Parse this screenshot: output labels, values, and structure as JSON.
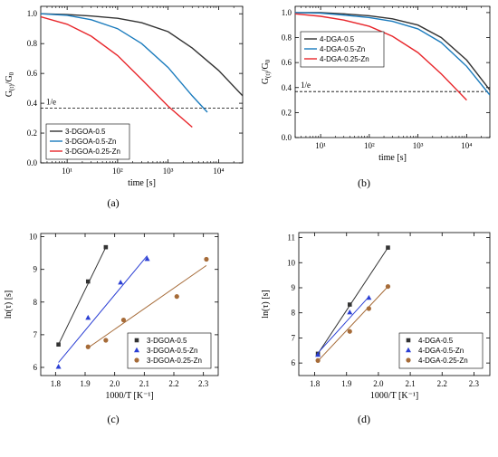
{
  "chart_data": [
    {
      "panel": "(a)",
      "type": "line",
      "xscale": "log",
      "xlim": [
        3,
        30000
      ],
      "ylim": [
        0,
        1.05
      ],
      "x_ticks": [
        10,
        100,
        1000,
        10000
      ],
      "x_tick_labels": [
        "10¹",
        "10²",
        "10³",
        "10⁴"
      ],
      "y_ticks": [
        0,
        0.2,
        0.4,
        0.6,
        0.8,
        1.0
      ],
      "y_tick_labels": [
        "0.0",
        "0.2",
        "0.4",
        "0.6",
        "0.8",
        "1.0"
      ],
      "xlabel": "time [s]",
      "ylabel": "G(t)/G0",
      "ylabel_main": "G",
      "ylabel_sub1": "(t)",
      "ylabel_mid": "/G",
      "ylabel_sub2": "0",
      "reference_line": {
        "y": 0.368,
        "label": "1/e",
        "style": "dashed"
      },
      "legend_position": "bottom-left",
      "series": [
        {
          "name": "3-DGOA-0.5",
          "color": "#333333",
          "x": [
            3,
            10,
            30,
            100,
            300,
            1000,
            3000,
            10000,
            30000
          ],
          "y": [
            1.0,
            0.995,
            0.985,
            0.97,
            0.94,
            0.88,
            0.77,
            0.62,
            0.45
          ]
        },
        {
          "name": "3-DGOA-0.5-Zn",
          "color": "#1a7bbd",
          "x": [
            3,
            10,
            30,
            100,
            300,
            1000,
            3000,
            6000
          ],
          "y": [
            1.0,
            0.99,
            0.96,
            0.9,
            0.8,
            0.64,
            0.45,
            0.34
          ]
        },
        {
          "name": "3-DGOA-0.25-Zn",
          "color": "#e8262b",
          "x": [
            3,
            10,
            30,
            100,
            300,
            1000,
            3000
          ],
          "y": [
            0.98,
            0.93,
            0.85,
            0.72,
            0.56,
            0.38,
            0.24
          ]
        }
      ]
    },
    {
      "panel": "(b)",
      "type": "line",
      "xscale": "log",
      "xlim": [
        3,
        30000
      ],
      "ylim": [
        0,
        1.05
      ],
      "x_ticks": [
        10,
        100,
        1000,
        10000
      ],
      "x_tick_labels": [
        "10¹",
        "10²",
        "10³",
        "10⁴"
      ],
      "y_ticks": [
        0,
        0.2,
        0.4,
        0.6,
        0.8,
        1.0
      ],
      "y_tick_labels": [
        "0.0",
        "0.2",
        "0.4",
        "0.6",
        "0.8",
        "1.0"
      ],
      "xlabel": "time [s]",
      "ylabel": "G(t)/G0",
      "ylabel_main": "G",
      "ylabel_sub1": "(t)",
      "ylabel_mid": "/G",
      "ylabel_sub2": "0",
      "reference_line": {
        "y": 0.368,
        "label": "1/e",
        "style": "dashed"
      },
      "legend_position": "top-left",
      "series": [
        {
          "name": "4-DGA-0.5",
          "color": "#333333",
          "x": [
            3,
            10,
            30,
            100,
            300,
            1000,
            3000,
            10000,
            30000
          ],
          "y": [
            1.0,
            1.0,
            0.99,
            0.975,
            0.95,
            0.9,
            0.8,
            0.62,
            0.38
          ]
        },
        {
          "name": "4-DGA-0.5-Zn",
          "color": "#1a7bbd",
          "x": [
            3,
            10,
            30,
            100,
            300,
            1000,
            3000,
            10000,
            30000
          ],
          "y": [
            1.0,
            0.995,
            0.98,
            0.96,
            0.93,
            0.87,
            0.76,
            0.57,
            0.34
          ]
        },
        {
          "name": "4-DGA-0.25-Zn",
          "color": "#e8262b",
          "x": [
            3,
            10,
            30,
            100,
            300,
            1000,
            3000,
            10000
          ],
          "y": [
            0.99,
            0.97,
            0.94,
            0.89,
            0.81,
            0.68,
            0.51,
            0.3
          ]
        }
      ]
    },
    {
      "panel": "(c)",
      "type": "scatter",
      "xlim": [
        1.75,
        2.35
      ],
      "ylim": [
        5.75,
        10.1
      ],
      "x_ticks": [
        1.8,
        1.9,
        2.0,
        2.1,
        2.2,
        2.3
      ],
      "x_tick_labels": [
        "1.8",
        "1.9",
        "2.0",
        "2.1",
        "2.2",
        "2.3"
      ],
      "y_ticks": [
        6,
        7,
        8,
        9,
        10
      ],
      "y_tick_labels": [
        "6",
        "7",
        "8",
        "9",
        "10"
      ],
      "xlabel": "1000/T [K⁻¹]",
      "ylabel": "ln(τ) [s]",
      "legend_position": "bottom-right",
      "series": [
        {
          "name": "3-DGOA-0.5",
          "color": "#333333",
          "marker": "square",
          "points": [
            [
              1.81,
              6.7
            ],
            [
              1.91,
              8.63
            ],
            [
              1.97,
              9.68
            ]
          ],
          "fit": [
            [
              1.81,
              6.7
            ],
            [
              1.97,
              9.68
            ]
          ]
        },
        {
          "name": "3-DGOA-0.5-Zn",
          "color": "#2b3fd4",
          "marker": "triangle",
          "points": [
            [
              1.81,
              6.02
            ],
            [
              1.91,
              7.52
            ],
            [
              2.02,
              8.6
            ],
            [
              2.11,
              9.32
            ]
          ],
          "fit": [
            [
              1.81,
              6.15
            ],
            [
              2.11,
              9.42
            ]
          ]
        },
        {
          "name": "3-DGOA-0.25-Zn",
          "color": "#a66b38",
          "marker": "circle",
          "points": [
            [
              1.91,
              6.63
            ],
            [
              1.97,
              6.83
            ],
            [
              2.03,
              7.45
            ],
            [
              2.21,
              8.17
            ],
            [
              2.31,
              9.31
            ]
          ],
          "fit": [
            [
              1.91,
              6.6
            ],
            [
              2.31,
              9.12
            ]
          ]
        }
      ]
    },
    {
      "panel": "(d)",
      "type": "scatter",
      "xlim": [
        1.75,
        2.35
      ],
      "ylim": [
        5.5,
        11.2
      ],
      "x_ticks": [
        1.8,
        1.9,
        2.0,
        2.1,
        2.2,
        2.3
      ],
      "x_tick_labels": [
        "1.8",
        "1.9",
        "2.0",
        "2.1",
        "2.2",
        "2.3"
      ],
      "y_ticks": [
        6,
        7,
        8,
        9,
        10,
        11
      ],
      "y_tick_labels": [
        "6",
        "7",
        "8",
        "9",
        "10",
        "11"
      ],
      "xlabel": "1000/T [K⁻¹]",
      "ylabel": "ln(τ) [s]",
      "legend_position": "bottom-right",
      "series": [
        {
          "name": "4-DGA-0.5",
          "color": "#333333",
          "marker": "square",
          "points": [
            [
              1.81,
              6.37
            ],
            [
              1.91,
              8.33
            ],
            [
              2.03,
              10.6
            ]
          ],
          "fit": [
            [
              1.81,
              6.37
            ],
            [
              2.03,
              10.6
            ]
          ]
        },
        {
          "name": "4-DGA-0.5-Zn",
          "color": "#2b3fd4",
          "marker": "triangle",
          "points": [
            [
              1.81,
              6.33
            ],
            [
              1.91,
              8.02
            ],
            [
              1.97,
              8.6
            ]
          ],
          "fit": [
            [
              1.81,
              6.4
            ],
            [
              1.97,
              8.64
            ]
          ]
        },
        {
          "name": "4-DGA-0.25-Zn",
          "color": "#a66b38",
          "marker": "circle",
          "points": [
            [
              1.81,
              6.1
            ],
            [
              1.91,
              7.26
            ],
            [
              1.97,
              8.17
            ],
            [
              2.03,
              9.05
            ]
          ],
          "fit": [
            [
              1.81,
              6.08
            ],
            [
              2.03,
              9.05
            ]
          ]
        }
      ]
    }
  ]
}
